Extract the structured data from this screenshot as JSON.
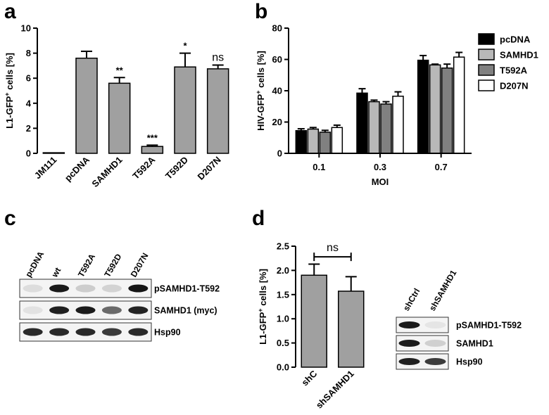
{
  "panels": {
    "a": "a",
    "b": "b",
    "c": "c",
    "d": "d"
  },
  "chart_data": [
    {
      "panel": "a",
      "type": "bar",
      "ylabel_main": "L1-GFP",
      "ylabel_sup": "+",
      "ylabel_rest": " cells [%]",
      "categories": [
        "JM111",
        "pcDNA",
        "SAMHD1",
        "T592A",
        "T592D",
        "D207N"
      ],
      "values": [
        0.05,
        7.6,
        5.6,
        0.55,
        6.9,
        6.75
      ],
      "errors": [
        0.0,
        0.55,
        0.45,
        0.1,
        1.1,
        0.3
      ],
      "significance": [
        "",
        "",
        "**",
        "***",
        "*",
        "ns"
      ],
      "ylim": [
        0,
        10
      ],
      "yticks": [
        "0",
        "2",
        "4",
        "6",
        "8",
        "10"
      ],
      "bar_color": "#a0a0a0"
    },
    {
      "panel": "b",
      "type": "bar",
      "ylabel_main": "HIV-GFP",
      "ylabel_sup": "+",
      "ylabel_rest": " cells [%]",
      "xlabel": "MOI",
      "categories": [
        "0.1",
        "0.3",
        "0.7"
      ],
      "series": [
        {
          "name": "pcDNA",
          "color": "#000000",
          "values": [
            14.5,
            38.5,
            59.5
          ],
          "errors": [
            1.2,
            2.8,
            3.0
          ]
        },
        {
          "name": "SAMHD1",
          "color": "#b8b8b8",
          "values": [
            15.5,
            33.0,
            56.5
          ],
          "errors": [
            1.0,
            1.0,
            0.5
          ]
        },
        {
          "name": "T592A",
          "color": "#808080",
          "values": [
            13.5,
            31.5,
            54.5
          ],
          "errors": [
            1.2,
            1.5,
            2.5
          ]
        },
        {
          "name": "D207N",
          "color": "#ffffff",
          "values": [
            16.5,
            36.5,
            61.5
          ],
          "errors": [
            1.5,
            2.8,
            3.0
          ]
        }
      ],
      "ylim": [
        0,
        80
      ],
      "yticks": [
        "0",
        "20",
        "40",
        "60",
        "80"
      ],
      "legend_position": "right"
    },
    {
      "panel": "d",
      "type": "bar",
      "ylabel_main": "L1-GFP",
      "ylabel_sup": "+",
      "ylabel_rest": " cells [%]",
      "categories": [
        "shC",
        "shSAMHD1"
      ],
      "values": [
        1.9,
        1.57
      ],
      "errors": [
        0.23,
        0.3
      ],
      "ylim": [
        0,
        2.5
      ],
      "yticks": [
        "0.0",
        "0.5",
        "1.0",
        "1.5",
        "2.0",
        "2.5"
      ],
      "significance_bracket": "ns",
      "bar_color": "#a0a0a0"
    }
  ],
  "blot_c": {
    "lanes": [
      "pcDNA",
      "wt",
      "T592A",
      "T592D",
      "D207N"
    ],
    "rows": [
      {
        "label": "pSAMHD1-T592",
        "intensity": [
          0.12,
          0.92,
          0.22,
          0.18,
          0.95
        ]
      },
      {
        "label": "SAMHD1 (myc)",
        "intensity": [
          0.08,
          0.9,
          0.92,
          0.65,
          0.88
        ]
      },
      {
        "label": "Hsp90",
        "intensity": [
          0.85,
          0.85,
          0.85,
          0.8,
          0.85
        ]
      }
    ]
  },
  "blot_d": {
    "lanes": [
      "shCtrl",
      "shSAMHD1"
    ],
    "rows": [
      {
        "label": "pSAMHD1-T592",
        "intensity": [
          0.92,
          0.05
        ]
      },
      {
        "label": "SAMHD1",
        "intensity": [
          0.92,
          0.2
        ]
      },
      {
        "label": "Hsp90",
        "intensity": [
          0.9,
          0.8
        ]
      }
    ]
  }
}
